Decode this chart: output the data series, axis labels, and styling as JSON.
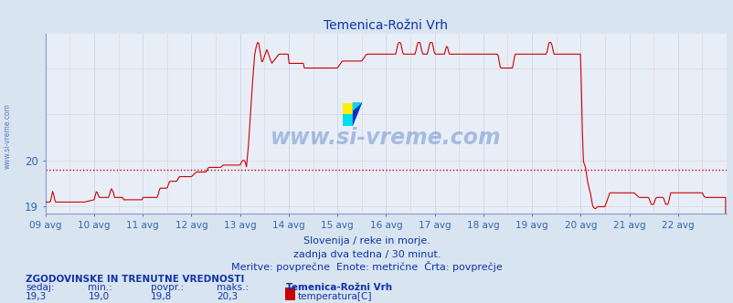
{
  "title": "Temenica-Rožni Vrh",
  "bg_color": "#d8e4f0",
  "plot_bg_color": "#e8eef8",
  "line_color": "#cc0000",
  "avg_line_color": "#cc0000",
  "avg_line_value": 19.8,
  "grid_color": "#c8d4e8",
  "grid_minor_color": "#e0c8c8",
  "xlabel_color": "#3366aa",
  "ylabel_color": "#3366aa",
  "title_color": "#1133aa",
  "text_color": "#1133aa",
  "ymin": 18.85,
  "ymax": 22.75,
  "ytick_vals": [
    19,
    20
  ],
  "x_labels": [
    "09 avg",
    "10 avg",
    "11 avg",
    "12 avg",
    "13 avg",
    "14 avg",
    "15 avg",
    "16 avg",
    "17 avg",
    "18 avg",
    "19 avg",
    "20 avg",
    "21 avg",
    "22 avg"
  ],
  "watermark": "www.si-vreme.com",
  "subtitle1": "Slovenija / reke in morje.",
  "subtitle2": "zadnja dva tedna / 30 minut.",
  "subtitle3": "Meritve: povprečne  Enote: metrične  Črta: povprečje",
  "stat_label1": "ZGODOVINSKE IN TRENUTNE VREDNOSTI",
  "stat_sedaj": "sedaj:",
  "stat_min": "min.:",
  "stat_povpr": "povpr.:",
  "stat_maks": "maks.:",
  "stat_station": "Temenica-Rožni Vrh",
  "stat_val_sedaj": "19,3",
  "stat_val_min": "19,0",
  "stat_val_povpr": "19,8",
  "stat_val_maks": "20,3",
  "stat_series": "temperatura[C]",
  "legend_color": "#cc0000",
  "spine_color": "#8899cc",
  "left_label": "www.si-vreme.com"
}
